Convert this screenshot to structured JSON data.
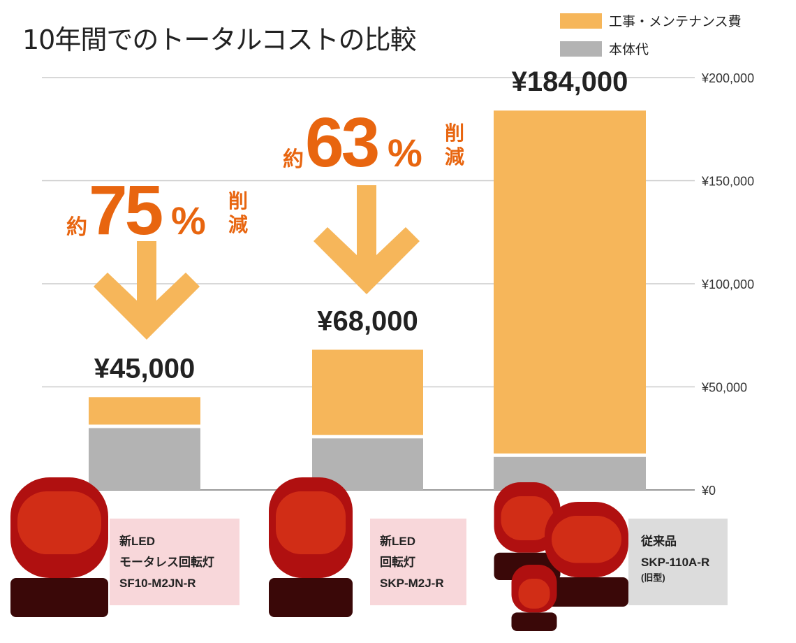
{
  "chart_data": {
    "type": "bar",
    "stacked": true,
    "title": "10年間でのトータルコストの比較",
    "categories": [
      "SF10-M2JN-R",
      "SKP-M2J-R",
      "SKP-110A-R"
    ],
    "series": [
      {
        "name": "本体代",
        "color": "#b3b3b3",
        "values": [
          30000,
          25000,
          16000
        ]
      },
      {
        "name": "工事・メンテナンス費",
        "color": "#f6b65a",
        "values": [
          15000,
          43000,
          168000
        ]
      }
    ],
    "totals": [
      "¥45,000",
      "¥68,000",
      "¥184,000"
    ],
    "ylim": [
      0,
      200000
    ],
    "yticks": [
      0,
      50000,
      100000,
      150000,
      200000
    ],
    "ytick_labels": [
      "¥0",
      "¥50,000",
      "¥100,000",
      "¥150,000",
      "¥200,000"
    ],
    "grid": true,
    "legend": "top-right",
    "annotations": [
      {
        "prefix": "約",
        "value": "75",
        "unit": "%",
        "suffix": [
          "削",
          "減"
        ]
      },
      {
        "prefix": "約",
        "value": "63",
        "unit": "%",
        "suffix": [
          "削",
          "減"
        ]
      }
    ],
    "accent": "#e8650f"
  },
  "products": [
    {
      "line1": "新LED",
      "line2": "モータレス回転灯",
      "model": "SF10-M2JN-R",
      "note": "",
      "bg": "#f8d7da"
    },
    {
      "line1": "新LED",
      "line2": "回転灯",
      "model": "SKP-M2J-R",
      "note": "",
      "bg": "#f8d7da"
    },
    {
      "line1": "従来品",
      "line2": "",
      "model": "SKP-110A-R",
      "note": "(旧型)",
      "bg": "#dcdcdc"
    }
  ]
}
